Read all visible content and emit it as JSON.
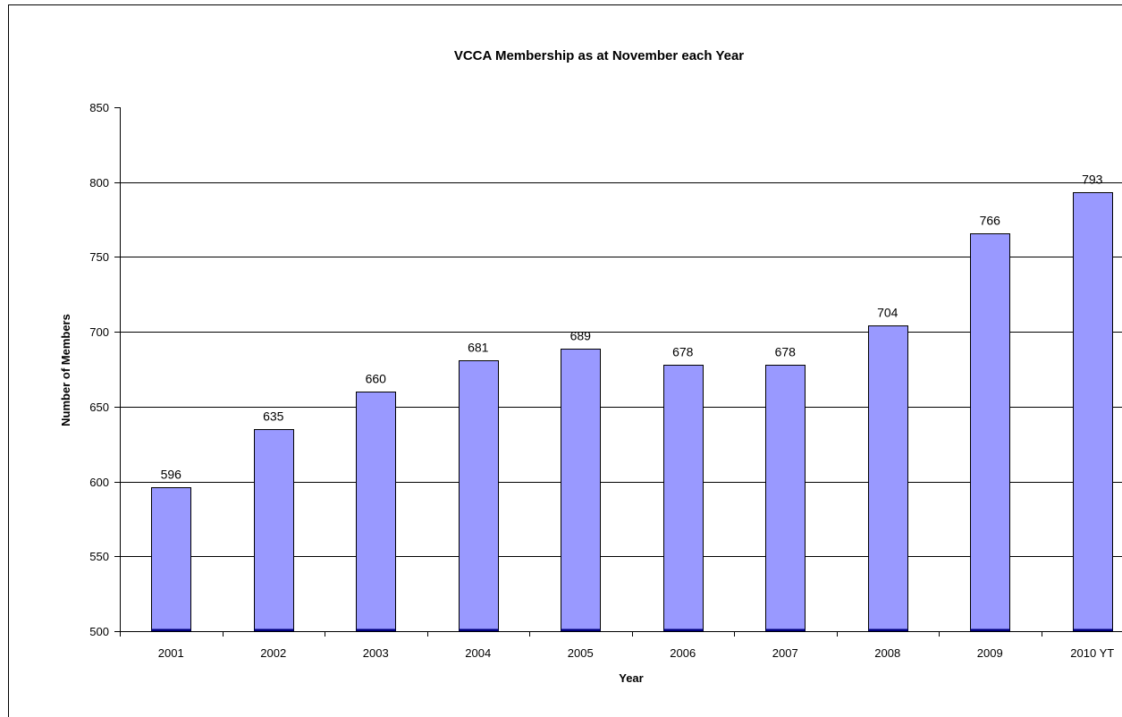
{
  "chart_data": {
    "type": "bar",
    "title": "VCCA Membership as at November each Year",
    "xlabel": "Year",
    "ylabel": "Number of Members",
    "categories": [
      "2001",
      "2002",
      "2003",
      "2004",
      "2005",
      "2006",
      "2007",
      "2008",
      "2009",
      "2010 YT"
    ],
    "values": [
      596,
      635,
      660,
      681,
      689,
      678,
      678,
      704,
      766,
      793
    ],
    "ylim": [
      500,
      850
    ],
    "yticks": [
      500,
      550,
      600,
      650,
      700,
      750,
      800,
      850
    ],
    "grid": true,
    "legend": "none",
    "bar_color": "#9999ff",
    "frame_color": "#000000"
  }
}
